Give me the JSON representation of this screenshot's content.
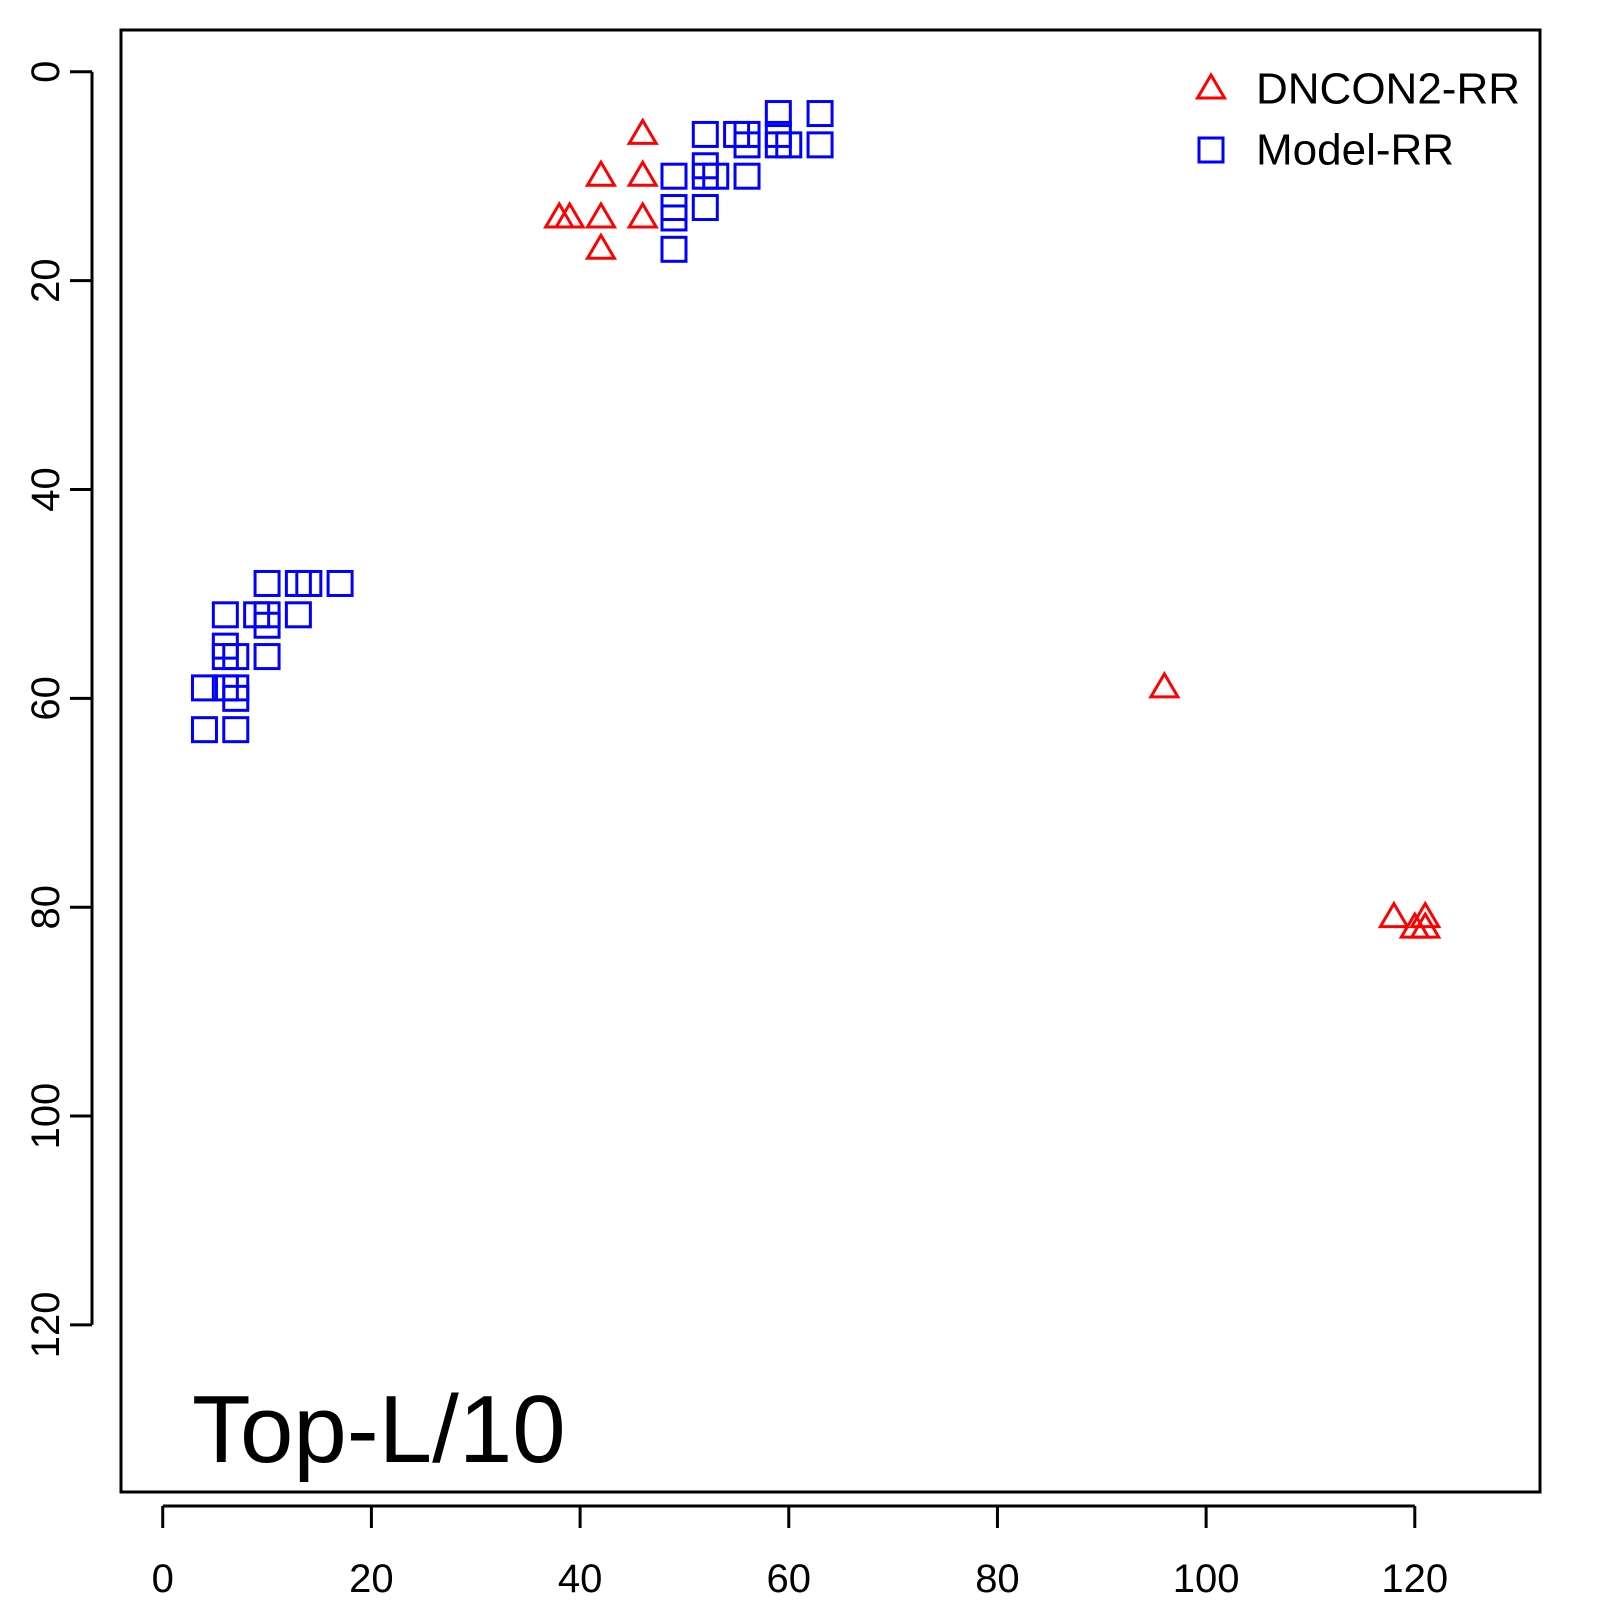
{
  "chart_data": {
    "type": "scatter",
    "title": "",
    "xlabel": "",
    "ylabel": "",
    "xlim": [
      -4,
      132
    ],
    "ylim": [
      -4,
      136
    ],
    "y_reversed": true,
    "x_ticks": [
      0,
      20,
      40,
      60,
      80,
      100,
      120
    ],
    "y_ticks": [
      0,
      20,
      40,
      60,
      80,
      100,
      120
    ],
    "grid": false,
    "legend_position": "top-right",
    "annotation": "Top-L/10",
    "series": [
      {
        "name": "DNCON2-RR",
        "marker": "triangle",
        "color": "#ff0000",
        "points": [
          {
            "x": 46,
            "y": 6
          },
          {
            "x": 42,
            "y": 10
          },
          {
            "x": 46,
            "y": 10
          },
          {
            "x": 38,
            "y": 14
          },
          {
            "x": 39,
            "y": 14
          },
          {
            "x": 42,
            "y": 14
          },
          {
            "x": 46,
            "y": 14
          },
          {
            "x": 42,
            "y": 17
          },
          {
            "x": 96,
            "y": 59
          },
          {
            "x": 118,
            "y": 81
          },
          {
            "x": 121,
            "y": 81
          },
          {
            "x": 120,
            "y": 82
          },
          {
            "x": 121,
            "y": 82
          }
        ]
      },
      {
        "name": "Model-RR",
        "marker": "square",
        "color": "#0000ff",
        "points": [
          {
            "x": 59,
            "y": 4
          },
          {
            "x": 63,
            "y": 4
          },
          {
            "x": 52,
            "y": 6
          },
          {
            "x": 55,
            "y": 6
          },
          {
            "x": 56,
            "y": 6
          },
          {
            "x": 59,
            "y": 6
          },
          {
            "x": 56,
            "y": 7
          },
          {
            "x": 59,
            "y": 7
          },
          {
            "x": 60,
            "y": 7
          },
          {
            "x": 63,
            "y": 7
          },
          {
            "x": 52,
            "y": 9
          },
          {
            "x": 49,
            "y": 10
          },
          {
            "x": 52,
            "y": 10
          },
          {
            "x": 53,
            "y": 10
          },
          {
            "x": 56,
            "y": 10
          },
          {
            "x": 49,
            "y": 13
          },
          {
            "x": 52,
            "y": 13
          },
          {
            "x": 49,
            "y": 14
          },
          {
            "x": 49,
            "y": 17
          },
          {
            "x": 10,
            "y": 49
          },
          {
            "x": 13,
            "y": 49
          },
          {
            "x": 14,
            "y": 49
          },
          {
            "x": 17,
            "y": 49
          },
          {
            "x": 6,
            "y": 52
          },
          {
            "x": 9,
            "y": 52
          },
          {
            "x": 10,
            "y": 52
          },
          {
            "x": 13,
            "y": 52
          },
          {
            "x": 10,
            "y": 53
          },
          {
            "x": 6,
            "y": 55
          },
          {
            "x": 6,
            "y": 56
          },
          {
            "x": 7,
            "y": 56
          },
          {
            "x": 10,
            "y": 56
          },
          {
            "x": 4,
            "y": 59
          },
          {
            "x": 6,
            "y": 59
          },
          {
            "x": 7,
            "y": 59
          },
          {
            "x": 7,
            "y": 60
          },
          {
            "x": 4,
            "y": 63
          },
          {
            "x": 7,
            "y": 63
          }
        ]
      }
    ]
  }
}
